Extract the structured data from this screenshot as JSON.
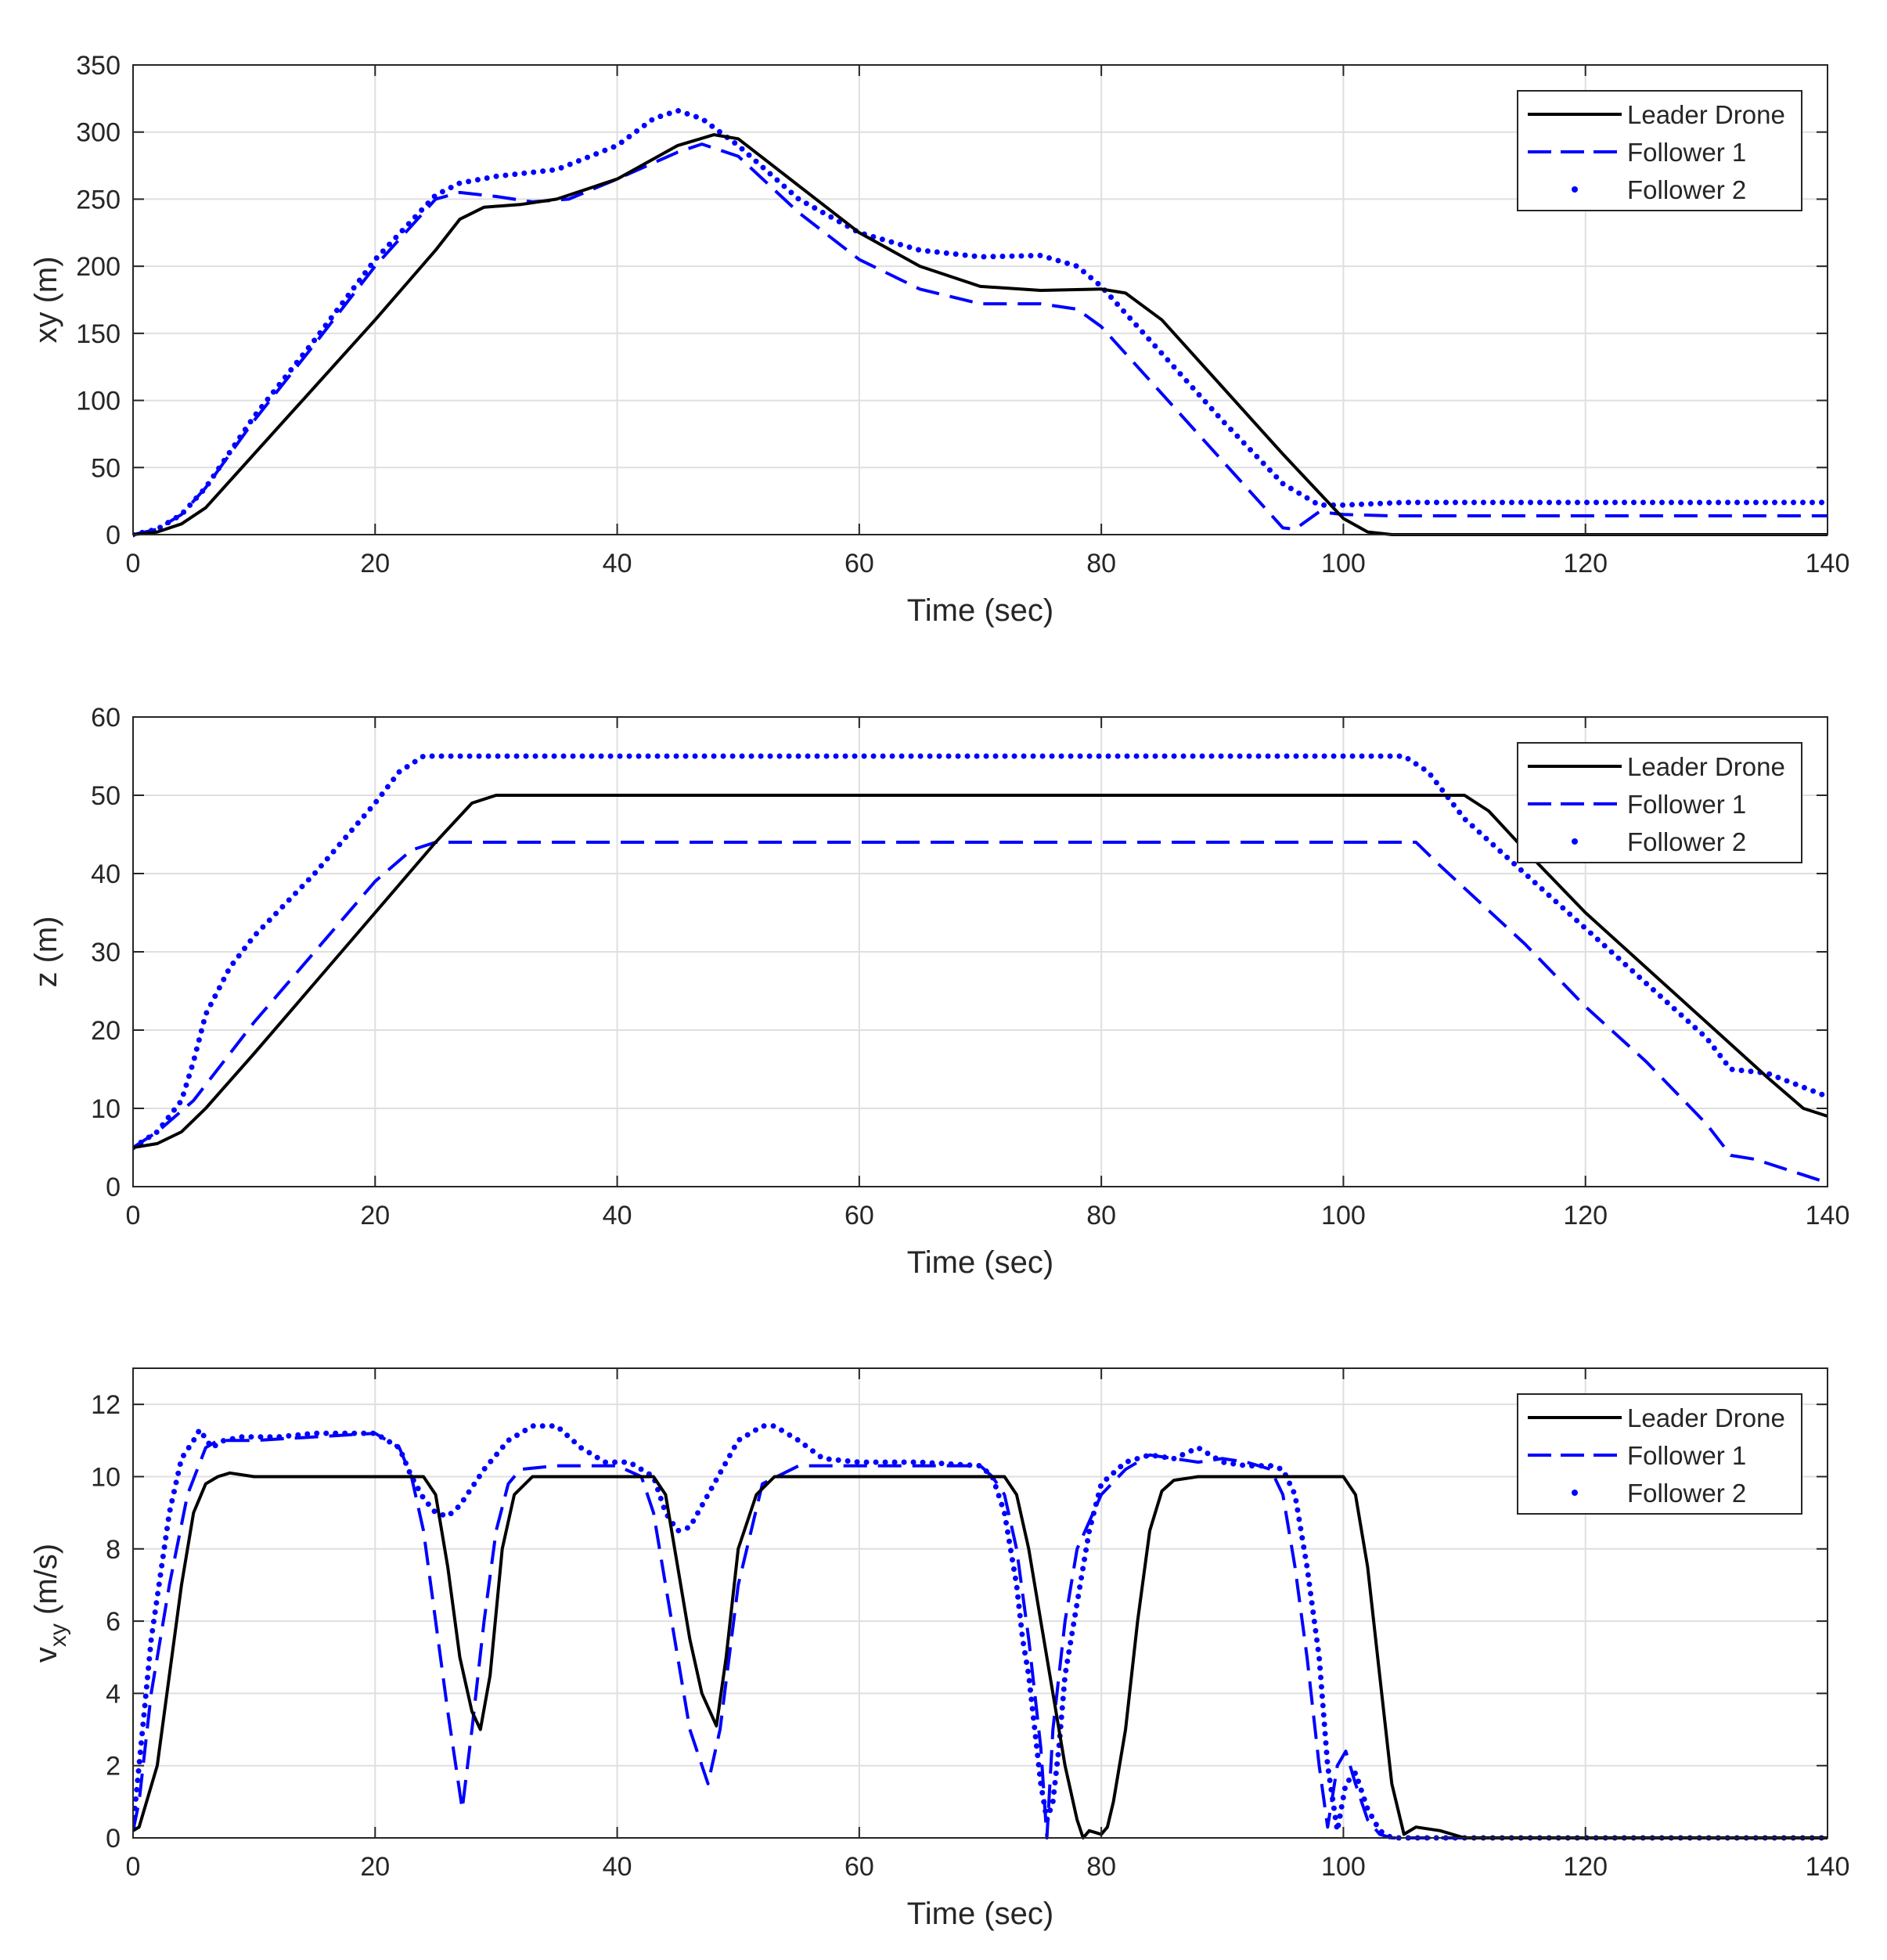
{
  "chart_data": [
    {
      "type": "line",
      "title": "",
      "xlabel": "Time (sec)",
      "ylabel": "xy (m)",
      "xlim": [
        0,
        140
      ],
      "ylim": [
        0,
        350
      ],
      "xticks": [
        0,
        20,
        40,
        60,
        80,
        100,
        120,
        140
      ],
      "yticks": [
        0,
        50,
        100,
        150,
        200,
        250,
        300,
        350
      ],
      "grid": true,
      "legend_position": "top-right",
      "series": [
        {
          "name": "Leader Drone",
          "style": "solid",
          "color": "#000000",
          "x": [
            0,
            2,
            4,
            6,
            10,
            15,
            20,
            25,
            27,
            29,
            32,
            35,
            40,
            45,
            48,
            50,
            55,
            60,
            65,
            70,
            75,
            80,
            82,
            85,
            90,
            95,
            100,
            102,
            104,
            110,
            120,
            130,
            140
          ],
          "y": [
            0,
            2,
            8,
            20,
            60,
            110,
            160,
            212,
            235,
            244,
            246,
            250,
            265,
            290,
            298,
            295,
            260,
            225,
            200,
            185,
            182,
            183,
            180,
            160,
            110,
            60,
            12,
            2,
            0,
            0,
            0,
            0,
            0
          ]
        },
        {
          "name": "Follower 1",
          "style": "dashed",
          "color": "#0000ff",
          "x": [
            0,
            2,
            4,
            6,
            10,
            15,
            20,
            25,
            27,
            30,
            33,
            36,
            40,
            45,
            47,
            50,
            55,
            60,
            65,
            70,
            75,
            78,
            80,
            85,
            90,
            95,
            96,
            98,
            100,
            104,
            110,
            120,
            130,
            140
          ],
          "y": [
            0,
            4,
            15,
            35,
            85,
            142,
            200,
            250,
            255,
            252,
            248,
            250,
            265,
            285,
            291,
            282,
            240,
            205,
            183,
            172,
            172,
            168,
            155,
            105,
            55,
            5,
            4,
            17,
            15,
            14,
            14,
            14,
            14,
            14
          ]
        },
        {
          "name": "Follower 2",
          "style": "dotted",
          "color": "#0000ff",
          "x": [
            0,
            2,
            4,
            6,
            10,
            15,
            20,
            25,
            27,
            30,
            35,
            40,
            43,
            45,
            47,
            50,
            55,
            60,
            65,
            70,
            75,
            78,
            80,
            85,
            90,
            95,
            98,
            100,
            105,
            110,
            120,
            130,
            140
          ],
          "y": [
            0,
            4,
            15,
            35,
            88,
            145,
            205,
            253,
            262,
            267,
            272,
            290,
            310,
            316,
            310,
            290,
            250,
            225,
            212,
            207,
            208,
            200,
            185,
            135,
            85,
            38,
            22,
            22,
            24,
            24,
            24,
            24,
            24
          ]
        }
      ]
    },
    {
      "type": "line",
      "title": "",
      "xlabel": "Time (sec)",
      "ylabel": "z (m)",
      "xlim": [
        0,
        140
      ],
      "ylim": [
        0,
        60
      ],
      "xticks": [
        0,
        20,
        40,
        60,
        80,
        100,
        120,
        140
      ],
      "yticks": [
        0,
        10,
        20,
        30,
        40,
        50,
        60
      ],
      "grid": true,
      "legend_position": "top-right",
      "series": [
        {
          "name": "Leader Drone",
          "style": "solid",
          "color": "#000000",
          "x": [
            0,
            2,
            4,
            6,
            10,
            15,
            20,
            25,
            28,
            30,
            40,
            60,
            80,
            100,
            110,
            112,
            115,
            120,
            125,
            130,
            135,
            138,
            140
          ],
          "y": [
            5,
            5.5,
            7,
            10,
            17,
            26,
            35,
            44,
            49,
            50,
            50,
            50,
            50,
            50,
            50,
            48,
            43,
            35,
            28,
            21,
            14,
            10,
            9
          ]
        },
        {
          "name": "Follower 1",
          "style": "dashed",
          "color": "#0000ff",
          "x": [
            0,
            2,
            5,
            10,
            15,
            20,
            23,
            25,
            30,
            60,
            80,
            100,
            106,
            108,
            115,
            120,
            125,
            130,
            132,
            134,
            140
          ],
          "y": [
            5,
            7,
            11,
            21,
            30,
            39,
            43,
            44,
            44,
            44,
            44,
            44,
            44,
            41,
            31,
            23,
            16,
            8,
            4,
            3.5,
            0.5
          ]
        },
        {
          "name": "Follower 2",
          "style": "dotted",
          "color": "#0000ff",
          "x": [
            0,
            2,
            4,
            5,
            6,
            8,
            10,
            15,
            20,
            22,
            24,
            26,
            30,
            60,
            80,
            100,
            105,
            107,
            110,
            115,
            120,
            125,
            130,
            132,
            135,
            140
          ],
          "y": [
            5,
            7,
            11,
            16,
            22,
            28,
            32,
            40,
            49,
            53,
            55,
            55,
            55,
            55,
            55,
            55,
            55,
            53,
            47,
            40,
            33,
            26,
            19,
            15,
            14.5,
            11.5
          ]
        }
      ]
    },
    {
      "type": "line",
      "title": "",
      "xlabel": "Time (sec)",
      "ylabel": "v",
      "ylabel_subscript": "xy",
      "ylabel_unit": " (m/s)",
      "xlim": [
        0,
        140
      ],
      "ylim": [
        0,
        13
      ],
      "xticks": [
        0,
        20,
        40,
        60,
        80,
        100,
        120,
        140
      ],
      "yticks": [
        0,
        2,
        4,
        6,
        8,
        10,
        12
      ],
      "grid": true,
      "legend_position": "top-right",
      "series": [
        {
          "name": "Leader Drone",
          "style": "solid",
          "color": "#000000",
          "x": [
            0,
            0.5,
            2,
            3,
            4,
            5,
            6,
            7,
            8,
            10,
            15,
            20,
            24,
            25,
            26,
            27,
            28,
            28.7,
            29.5,
            30.5,
            31.5,
            33,
            35,
            40,
            43,
            44,
            45,
            46,
            47,
            48.2,
            49,
            50,
            51.5,
            53,
            55,
            60,
            70,
            72,
            73,
            74,
            75,
            76,
            77,
            78,
            78.5,
            79,
            80,
            80.5,
            81,
            82,
            83,
            84,
            85,
            86,
            88,
            90,
            95,
            100,
            101,
            102,
            103,
            104,
            105,
            106,
            108,
            110,
            120,
            130,
            140
          ],
          "y": [
            0.2,
            0.3,
            2,
            4.5,
            7,
            9,
            9.8,
            10,
            10.1,
            10,
            10,
            10,
            10,
            9.5,
            7.5,
            5,
            3.5,
            3,
            4.5,
            8,
            9.5,
            10,
            10,
            10,
            10,
            9.5,
            7.5,
            5.5,
            4,
            3.1,
            5,
            8,
            9.5,
            10,
            10,
            10,
            10,
            10,
            9.5,
            8,
            6,
            4,
            2,
            0.5,
            0,
            0.2,
            0.1,
            0.3,
            1,
            3,
            6,
            8.5,
            9.6,
            9.9,
            10,
            10,
            10,
            10,
            9.5,
            7.5,
            4.5,
            1.5,
            0.1,
            0.3,
            0.2,
            0,
            0,
            0,
            0
          ]
        },
        {
          "name": "Follower 1",
          "style": "dashed",
          "color": "#0000ff",
          "x": [
            0,
            0.5,
            1.5,
            3,
            4.5,
            6,
            7,
            8,
            10,
            15,
            20,
            22,
            23,
            24,
            25,
            26,
            27.2,
            28,
            29,
            30,
            31,
            32,
            35,
            40,
            42,
            43,
            44,
            45,
            46,
            47.5,
            48.5,
            50,
            52,
            55,
            60,
            70,
            71,
            72,
            73,
            74,
            75,
            75.5,
            76,
            77,
            78,
            80,
            82,
            84,
            86,
            88,
            90,
            92,
            94,
            95,
            96,
            97,
            98,
            98.7,
            99.5,
            100.2,
            101,
            102,
            103,
            104,
            105,
            110,
            120,
            130,
            140
          ],
          "y": [
            0.2,
            1,
            4,
            7,
            9.5,
            10.8,
            11,
            11,
            11,
            11.1,
            11.2,
            10.8,
            10,
            8.5,
            6,
            3.5,
            0.8,
            3,
            6,
            8.5,
            9.8,
            10.2,
            10.3,
            10.3,
            10,
            9,
            7,
            5,
            3,
            1.5,
            3,
            7,
            9.8,
            10.3,
            10.3,
            10.3,
            10,
            9.5,
            8,
            5.5,
            2.5,
            0,
            3,
            6,
            8,
            9.5,
            10.2,
            10.6,
            10.5,
            10.4,
            10.5,
            10.4,
            10.2,
            9.5,
            7.5,
            5,
            2,
            0.3,
            2,
            2.4,
            1.5,
            0.5,
            0.1,
            0,
            0,
            0,
            0,
            0,
            0
          ]
        },
        {
          "name": "Follower 2",
          "style": "dotted",
          "color": "#0000ff",
          "x": [
            0,
            0.5,
            1.5,
            3,
            4,
            5,
            5.5,
            6.5,
            7.5,
            9,
            12,
            15,
            20,
            22,
            23,
            24,
            25,
            26,
            27,
            29,
            31,
            33,
            35,
            37,
            39,
            41,
            43,
            44,
            45,
            46,
            48,
            50,
            52,
            53,
            55,
            57,
            60,
            65,
            70,
            71,
            72,
            73,
            73.5,
            74,
            74.5,
            75,
            75.5,
            76,
            76.5,
            77,
            78,
            79,
            80,
            82,
            84,
            86,
            88,
            90,
            92,
            94,
            95,
            96,
            97,
            98,
            98.7,
            99.5,
            100.2,
            101,
            102,
            103,
            104,
            105,
            110,
            120,
            130,
            140
          ],
          "y": [
            0.3,
            2,
            5.5,
            9,
            10.5,
            11,
            11.3,
            10.8,
            11,
            11.1,
            11.1,
            11.2,
            11.2,
            10.8,
            10,
            9.4,
            9,
            8.9,
            9.2,
            10.2,
            11,
            11.4,
            11.4,
            10.8,
            10.4,
            10.4,
            10,
            9,
            8.5,
            8.6,
            9.8,
            11,
            11.4,
            11.4,
            11,
            10.5,
            10.4,
            10.4,
            10.3,
            10,
            9,
            7,
            5.5,
            4.5,
            3,
            1.5,
            0.5,
            1,
            2.5,
            4.5,
            6.5,
            8.5,
            9.8,
            10.4,
            10.6,
            10.5,
            10.8,
            10.4,
            10.3,
            10.3,
            10.2,
            9.5,
            7.5,
            5,
            2,
            0.2,
            1.5,
            1.8,
            0.8,
            0.2,
            0,
            0,
            0,
            0,
            0,
            0
          ]
        }
      ]
    }
  ]
}
